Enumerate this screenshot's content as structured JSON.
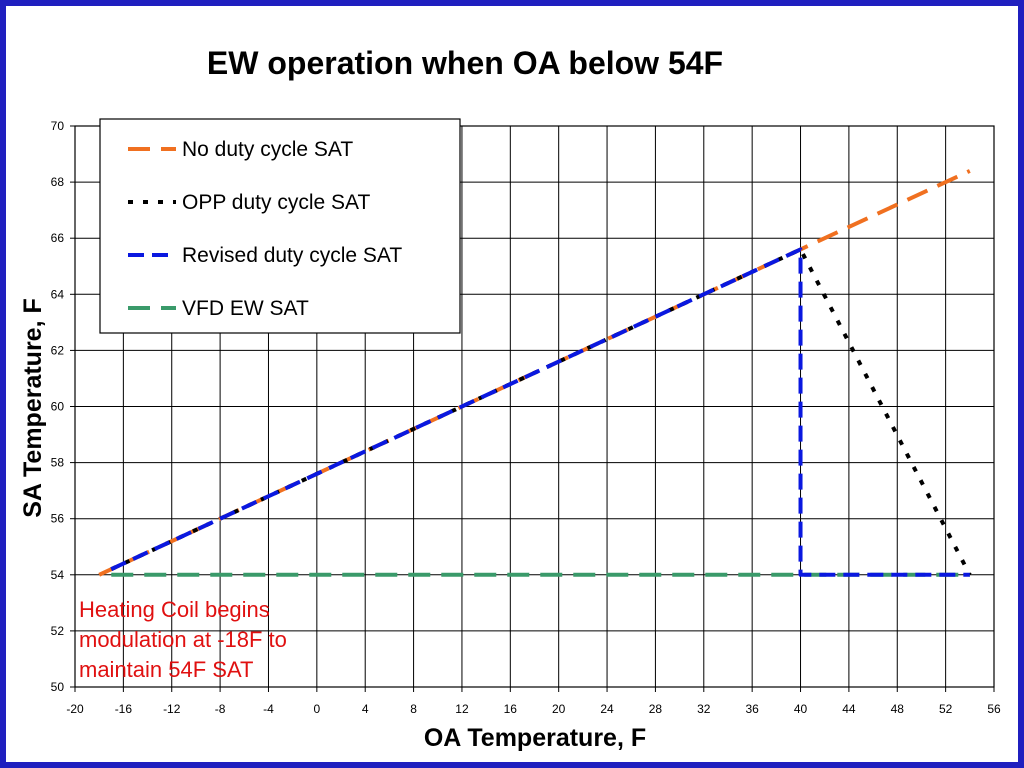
{
  "chart_data": {
    "type": "line",
    "title": "EW operation when OA below 54F",
    "xlabel": "OA Temperature, F",
    "ylabel": "SA Temperature, F",
    "xlim": [
      -20,
      56
    ],
    "ylim": [
      50,
      70
    ],
    "x_ticks": [
      "-20",
      "-16",
      "-12",
      "-8",
      "-4",
      "0",
      "4",
      "8",
      "12",
      "16",
      "20",
      "24",
      "28",
      "32",
      "36",
      "40",
      "44",
      "48",
      "52",
      "56"
    ],
    "y_ticks": [
      "50",
      "52",
      "54",
      "56",
      "58",
      "60",
      "62",
      "64",
      "66",
      "68",
      "70"
    ],
    "grid": true,
    "legend_position": "top-left",
    "series": [
      {
        "name": "No duty cycle SAT",
        "color": "#f07020",
        "dash": "long-dash",
        "x": [
          -18,
          -17,
          40,
          54
        ],
        "y": [
          54,
          54.2,
          65.6,
          68.4
        ]
      },
      {
        "name": "OPP duty cycle SAT",
        "color": "#000000",
        "dash": "dot",
        "x": [
          -17,
          40,
          54
        ],
        "y": [
          54.2,
          65.6,
          54
        ]
      },
      {
        "name": "Revised duty cycle SAT",
        "color": "#0a18e0",
        "dash": "dash",
        "x": [
          -17,
          40,
          40,
          54
        ],
        "y": [
          54.2,
          65.6,
          54,
          54
        ]
      },
      {
        "name": "VFD EW SAT",
        "color": "#3a9a6a",
        "dash": "long-dash",
        "x": [
          -17,
          54
        ],
        "y": [
          54,
          54
        ]
      }
    ],
    "annotations": [
      {
        "lines": [
          "Heating Coil begins",
          "modulation at -18F to",
          "maintain 54F SAT"
        ],
        "color": "#e01010"
      }
    ]
  }
}
